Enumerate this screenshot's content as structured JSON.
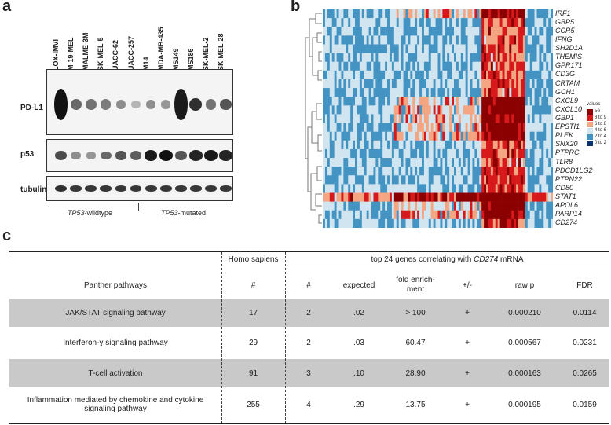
{
  "panels": {
    "a": "a",
    "b": "b",
    "c": "c"
  },
  "western_blot": {
    "cell_lines": [
      "LOX-IMVI",
      "M-19-MEL",
      "MALME-3M",
      "SK-MEL-5",
      "UACC-62",
      "UACC-257",
      "M14",
      "MDA-MB-435",
      "MS149",
      "MS186",
      "SK-MEL-2",
      "SK-MEL-28"
    ],
    "rows": {
      "pdl1": "PD-L1",
      "p53": "p53",
      "tubulin": "tubulin"
    },
    "groups": {
      "wt_italic": "TP53",
      "wt_rest": "-wildtype",
      "mut_italic": "TP53",
      "mut_rest": "-mutated"
    },
    "pdl1_intensity": [
      1.0,
      0.55,
      0.5,
      0.45,
      0.35,
      0.15,
      0.35,
      0.3,
      0.95,
      0.85,
      0.5,
      0.65
    ],
    "p53_intensity": [
      0.7,
      0.35,
      0.3,
      0.55,
      0.65,
      0.6,
      0.95,
      1.0,
      0.65,
      0.9,
      0.95,
      0.9
    ],
    "tubulin_intensity": [
      0.85,
      0.8,
      0.8,
      0.8,
      0.8,
      0.8,
      0.8,
      0.8,
      0.8,
      0.8,
      0.8,
      0.8
    ]
  },
  "heatmap": {
    "genes": [
      "IRF1",
      "GBP5",
      "CCR5",
      "IFNG",
      "SH2D1A",
      "THEMIS",
      "GPR171",
      "CD3G",
      "CRTAM",
      "GCH1",
      "CXCL9",
      "CXCL10",
      "GBP1",
      "EPSTI1",
      "PLEK",
      "SNX20",
      "PTPRC",
      "TLR8",
      "PDCD1LG2",
      "PTPN22",
      "CD80",
      "STAT1",
      "APOL6",
      "PARP14",
      "CD274"
    ],
    "legend_title": "values",
    "legend": [
      {
        "label": ">9",
        "color": "#8b0000"
      },
      {
        "label": "8 to 9",
        "color": "#d7191c"
      },
      {
        "label": "6 to 8",
        "color": "#f4a582"
      },
      {
        "label": "4 to 6",
        "color": "#d1e5f0"
      },
      {
        "label": "2 to 4",
        "color": "#4393c3"
      },
      {
        "label": "0 to 2",
        "color": "#08306b"
      }
    ]
  },
  "table": {
    "header": {
      "homo_sapiens": "Homo sapiens",
      "top_genes_pre": "top 24 genes correlating with ",
      "top_genes_gene": "CD274",
      "top_genes_post": " mRNA",
      "col_pathway": "Panther pathways",
      "col_hs_count": "#",
      "col_count": "#",
      "col_expected": "expected",
      "col_fold": "fold enrich-\nment",
      "col_sign": "+/-",
      "col_rawp": "raw p",
      "col_fdr": "FDR"
    },
    "rows": [
      {
        "pathway": "JAK/STAT signaling pathway",
        "hs": "17",
        "n": "2",
        "expected": ".02",
        "fold": "> 100",
        "sign": "+",
        "rawp": "0.000210",
        "fdr": "0.0114"
      },
      {
        "pathway": "Interferon-ɣ signaling pathway",
        "hs": "29",
        "n": "2",
        "expected": ".03",
        "fold": "60.47",
        "sign": "+",
        "rawp": "0.000567",
        "fdr": "0.0231"
      },
      {
        "pathway": "T-cell activation",
        "hs": "91",
        "n": "3",
        "expected": ".10",
        "fold": "28.90",
        "sign": "+",
        "rawp": "0.000163",
        "fdr": "0.0265"
      },
      {
        "pathway": "Inflammation mediated by chemokine and cytokine signaling pathway",
        "hs": "255",
        "n": "4",
        "expected": ".29",
        "fold": "13.75",
        "sign": "+",
        "rawp": "0.000195",
        "fdr": "0.0159"
      }
    ]
  }
}
